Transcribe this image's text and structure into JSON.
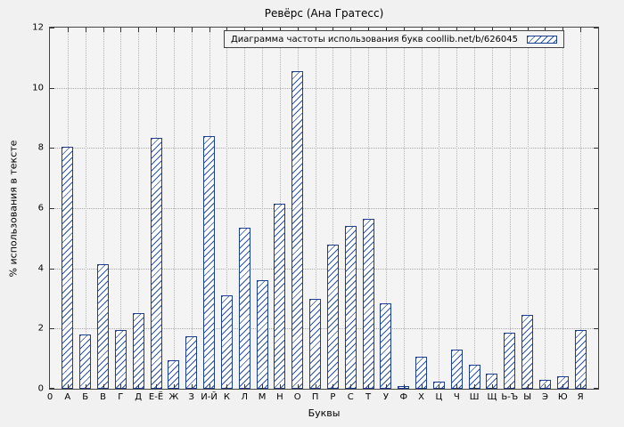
{
  "chart_data": {
    "type": "bar",
    "title": "Ревёрс (Ана Гратесс)",
    "legend": "Диаграмма частоты использования букв coollib.net/b/626045",
    "legend_position": "top-right-inside",
    "xlabel": "Буквы",
    "ylabel": "% использования в тексте",
    "ylim": [
      0,
      12
    ],
    "yticks": [
      0,
      2,
      4,
      6,
      8,
      10,
      12
    ],
    "x_origin_label": "0",
    "grid": true,
    "categories": [
      "А",
      "Б",
      "В",
      "Г",
      "Д",
      "Е-Ё",
      "Ж",
      "З",
      "И-Й",
      "К",
      "Л",
      "М",
      "Н",
      "О",
      "П",
      "Р",
      "С",
      "Т",
      "У",
      "Ф",
      "Х",
      "Ц",
      "Ч",
      "Ш",
      "Щ",
      "Ь-Ъ",
      "Ы",
      "Э",
      "Ю",
      "Я"
    ],
    "values": [
      8.05,
      1.8,
      4.15,
      1.95,
      2.5,
      8.35,
      0.95,
      1.75,
      8.4,
      3.1,
      5.35,
      3.6,
      6.15,
      10.55,
      3.0,
      4.8,
      5.4,
      5.65,
      2.85,
      0.1,
      1.05,
      0.25,
      1.3,
      0.8,
      0.5,
      1.85,
      2.45,
      0.3,
      0.4,
      1.95
    ],
    "bar_fill": "#ffffff",
    "bar_border_color": "#1c3f94",
    "hatch_color": "#2a52a0",
    "hatch_style": "diagonal"
  }
}
